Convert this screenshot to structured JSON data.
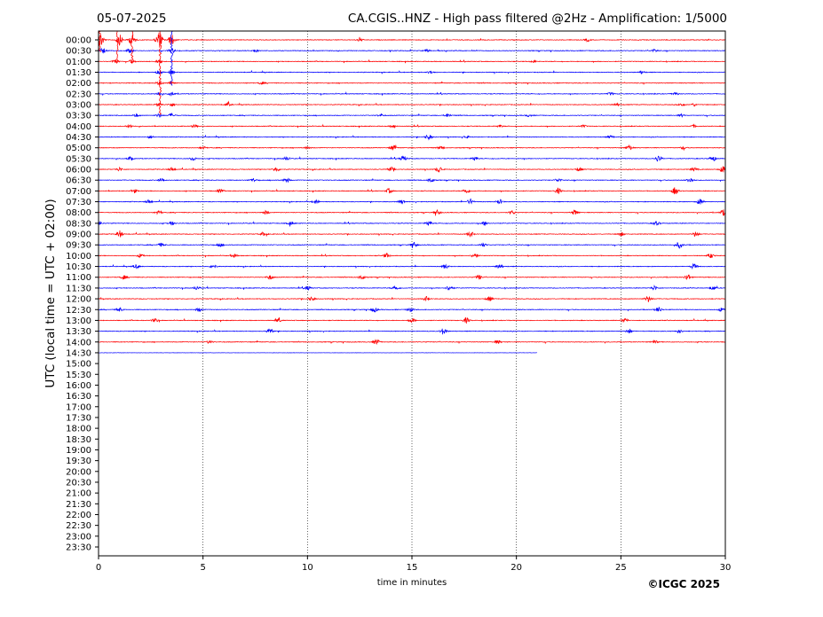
{
  "header": {
    "date": "05-07-2025",
    "title": "CA.CGIS..HNZ - High pass filtered @2Hz - Amplification: 1/5000"
  },
  "footer": {
    "copyright": "©ICGC 2025"
  },
  "chart_data": {
    "type": "line",
    "title": "CA.CGIS..HNZ - High pass filtered @2Hz - Amplification: 1/5000",
    "xlabel": "time in minutes",
    "ylabel": "UTC (local time = UTC + 02:00)",
    "xlim": [
      0,
      30
    ],
    "x_ticks": [
      0,
      5,
      10,
      15,
      20,
      25,
      30
    ],
    "x_gridlines": [
      5,
      10,
      15,
      20,
      25
    ],
    "row_labels": [
      "00:00",
      "00:30",
      "01:00",
      "01:30",
      "02:00",
      "02:30",
      "03:00",
      "03:30",
      "04:00",
      "04:30",
      "05:00",
      "05:30",
      "06:00",
      "06:30",
      "07:00",
      "07:30",
      "08:00",
      "08:30",
      "09:00",
      "09:30",
      "10:00",
      "10:30",
      "11:00",
      "11:30",
      "12:00",
      "12:30",
      "13:00",
      "13:30",
      "14:00",
      "14:30",
      "15:00",
      "15:30",
      "16:00",
      "16:30",
      "17:00",
      "17:30",
      "18:00",
      "18:30",
      "19:00",
      "19:30",
      "20:00",
      "20:30",
      "21:00",
      "21:30",
      "22:00",
      "22:30",
      "23:00",
      "23:30"
    ],
    "series_colors": {
      "hour": "#ff0000",
      "half_hour": "#0000ff"
    },
    "last_trace": {
      "label": "14:30",
      "end_minute": 21
    },
    "traces": [
      {
        "label": "00:00",
        "events": [
          [
            0.1,
            8
          ],
          [
            1,
            6
          ],
          [
            1.6,
            6
          ],
          [
            2.9,
            9
          ],
          [
            3.5,
            6
          ],
          [
            12.5,
            1.5
          ],
          [
            23.4,
            1.5
          ]
        ]
      },
      {
        "label": "00:30",
        "events": [
          [
            0.2,
            3
          ],
          [
            1.5,
            2
          ],
          [
            3.5,
            3
          ],
          [
            7.5,
            1.5
          ],
          [
            15.7,
            1.5
          ],
          [
            26.6,
            1.5
          ]
        ]
      },
      {
        "label": "01:00",
        "events": [
          [
            0.8,
            2.5
          ],
          [
            1.6,
            2
          ],
          [
            2.9,
            2.5
          ],
          [
            20.8,
            1.2
          ]
        ]
      },
      {
        "label": "01:30",
        "events": [
          [
            2.9,
            2
          ],
          [
            3.5,
            2
          ],
          [
            15.9,
            1.5
          ],
          [
            26,
            1.5
          ]
        ]
      },
      {
        "label": "02:00",
        "events": [
          [
            2.9,
            2
          ],
          [
            3.5,
            2
          ],
          [
            7.8,
            1.2
          ]
        ]
      },
      {
        "label": "02:30",
        "events": [
          [
            2.9,
            2
          ],
          [
            3.5,
            2
          ],
          [
            24.5,
            1.5
          ],
          [
            27.6,
            1.5
          ]
        ]
      },
      {
        "label": "03:00",
        "events": [
          [
            2.9,
            2
          ],
          [
            3.5,
            2
          ],
          [
            6.2,
            2
          ],
          [
            24.8,
            1.5
          ],
          [
            27.9,
            1.5
          ],
          [
            28.5,
            1.5
          ]
        ]
      },
      {
        "label": "03:30",
        "events": [
          [
            1.8,
            1.5
          ],
          [
            2.9,
            2
          ],
          [
            3.5,
            2
          ],
          [
            13.5,
            1.5
          ],
          [
            16.7,
            2
          ],
          [
            20.6,
            1.2
          ],
          [
            27.9,
            1.5
          ]
        ]
      },
      {
        "label": "04:00",
        "events": [
          [
            1.5,
            1.5
          ],
          [
            4.6,
            1.5
          ],
          [
            14.1,
            1.5
          ],
          [
            19.2,
            1.2
          ],
          [
            23.2,
            1.2
          ],
          [
            28.5,
            1.5
          ]
        ]
      },
      {
        "label": "04:30",
        "events": [
          [
            2.5,
            1.5
          ],
          [
            15.8,
            3
          ],
          [
            17.6,
            1.5
          ],
          [
            24.5,
            1.5
          ]
        ]
      },
      {
        "label": "05:00",
        "events": [
          [
            5,
            1.5
          ],
          [
            10,
            1.2
          ],
          [
            14.1,
            3
          ],
          [
            16.4,
            1.5
          ],
          [
            25.4,
            3
          ],
          [
            28,
            1.5
          ]
        ]
      },
      {
        "label": "05:30",
        "events": [
          [
            1.5,
            2
          ],
          [
            4.5,
            2
          ],
          [
            9,
            2
          ],
          [
            14.6,
            3
          ],
          [
            18,
            2
          ],
          [
            26.8,
            3.5
          ],
          [
            29.4,
            3
          ]
        ]
      },
      {
        "label": "06:00",
        "events": [
          [
            1,
            2
          ],
          [
            3.5,
            2
          ],
          [
            8.5,
            2.5
          ],
          [
            14,
            2.5
          ],
          [
            16.3,
            3
          ],
          [
            23,
            2
          ],
          [
            28.5,
            2
          ],
          [
            29.9,
            4
          ]
        ]
      },
      {
        "label": "06:30",
        "events": [
          [
            3,
            2
          ],
          [
            7.4,
            2
          ],
          [
            9,
            2.5
          ],
          [
            15.9,
            2.5
          ],
          [
            22,
            2
          ],
          [
            28.3,
            3
          ]
        ]
      },
      {
        "label": "07:00",
        "events": [
          [
            1.7,
            2
          ],
          [
            5.8,
            2
          ],
          [
            13.9,
            2.5
          ],
          [
            17.6,
            2.5
          ],
          [
            22,
            3
          ],
          [
            27.6,
            4
          ]
        ]
      },
      {
        "label": "07:30",
        "events": [
          [
            2.4,
            2
          ],
          [
            10.4,
            2
          ],
          [
            14.5,
            2
          ],
          [
            17.8,
            3
          ],
          [
            19.2,
            2.5
          ],
          [
            28.8,
            3.5
          ]
        ]
      },
      {
        "label": "08:00",
        "events": [
          [
            2.9,
            2
          ],
          [
            8,
            2
          ],
          [
            16.2,
            3
          ],
          [
            19.8,
            2
          ],
          [
            22.8,
            3
          ],
          [
            29.9,
            3.5
          ]
        ]
      },
      {
        "label": "08:30",
        "events": [
          [
            0,
            2.5
          ],
          [
            3.5,
            2
          ],
          [
            9.2,
            2
          ],
          [
            15.8,
            2.5
          ],
          [
            18.5,
            2.5
          ],
          [
            26.7,
            2
          ]
        ]
      },
      {
        "label": "09:00",
        "events": [
          [
            1,
            4
          ],
          [
            7.9,
            2
          ],
          [
            17.8,
            3
          ],
          [
            25,
            2
          ],
          [
            28.6,
            3
          ]
        ]
      },
      {
        "label": "09:30",
        "events": [
          [
            3,
            2
          ],
          [
            5.8,
            2
          ],
          [
            15.1,
            3
          ],
          [
            18.4,
            2
          ],
          [
            27.8,
            3.5
          ]
        ]
      },
      {
        "label": "10:00",
        "events": [
          [
            2,
            2
          ],
          [
            6.5,
            2
          ],
          [
            13.8,
            2.5
          ],
          [
            18,
            3
          ],
          [
            29.3,
            2.5
          ]
        ]
      },
      {
        "label": "10:30",
        "events": [
          [
            1.8,
            2
          ],
          [
            5.5,
            2
          ],
          [
            16.6,
            2.5
          ],
          [
            19.2,
            2.5
          ],
          [
            28.5,
            3
          ]
        ]
      },
      {
        "label": "11:00",
        "events": [
          [
            1.2,
            2
          ],
          [
            8.2,
            2.5
          ],
          [
            12.6,
            2.5
          ],
          [
            18.2,
            2.5
          ],
          [
            28.2,
            3.5
          ]
        ]
      },
      {
        "label": "11:30",
        "events": [
          [
            4.7,
            2
          ],
          [
            10,
            2
          ],
          [
            14.2,
            2.5
          ],
          [
            16.8,
            3
          ],
          [
            26.6,
            2.5
          ],
          [
            29.4,
            2
          ]
        ]
      },
      {
        "label": "12:00",
        "events": [
          [
            10.2,
            2
          ],
          [
            15.7,
            2.5
          ],
          [
            18.7,
            2.5
          ],
          [
            26.3,
            3.5
          ]
        ]
      },
      {
        "label": "12:30",
        "events": [
          [
            1,
            2
          ],
          [
            4.8,
            2
          ],
          [
            13.2,
            2.5
          ],
          [
            14.9,
            2.5
          ],
          [
            26.8,
            3
          ],
          [
            29.8,
            2
          ]
        ]
      },
      {
        "label": "13:00",
        "events": [
          [
            2.7,
            2
          ],
          [
            8.6,
            2
          ],
          [
            15,
            2.5
          ],
          [
            17.6,
            3
          ],
          [
            25.2,
            2.5
          ]
        ]
      },
      {
        "label": "13:30",
        "events": [
          [
            8.2,
            3
          ],
          [
            16.5,
            3.5
          ],
          [
            25.4,
            2.5
          ],
          [
            27.8,
            2
          ]
        ]
      },
      {
        "label": "14:00",
        "events": [
          [
            5.3,
            1.5
          ],
          [
            13.3,
            3
          ],
          [
            19.1,
            2
          ],
          [
            26.6,
            2
          ]
        ]
      },
      {
        "label": "14:30",
        "events": []
      }
    ]
  }
}
